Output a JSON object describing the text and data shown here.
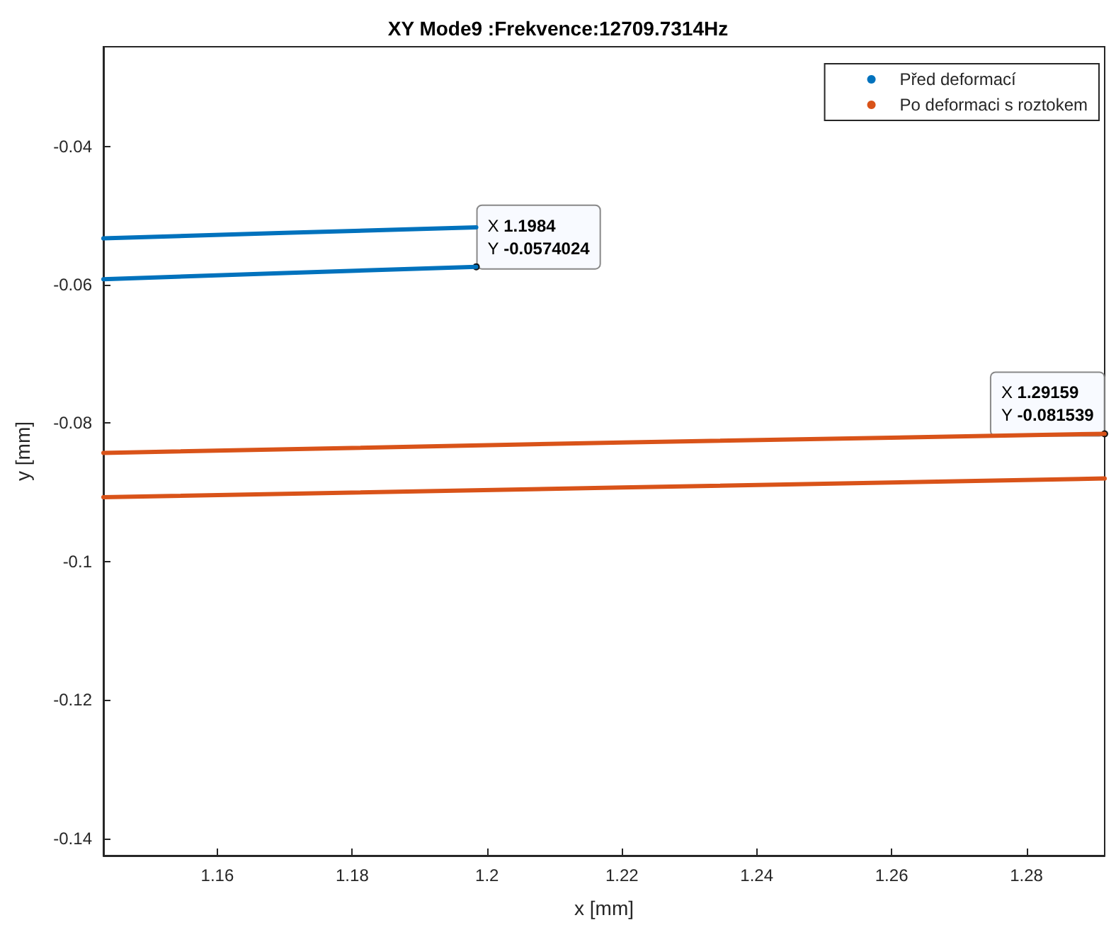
{
  "chart_data": {
    "type": "line",
    "title": "XY Mode9 :Frekvence:12709.7314Hz",
    "xlabel": "x [mm]",
    "ylabel": "y [mm]",
    "xlim": [
      1.1431,
      1.2916
    ],
    "ylim": [
      -0.1425,
      -0.0256
    ],
    "xticks": [
      1.16,
      1.18,
      1.2,
      1.22,
      1.24,
      1.26,
      1.28
    ],
    "yticks": [
      -0.14,
      -0.12,
      -0.1,
      -0.08,
      -0.06,
      -0.04
    ],
    "grid": false,
    "legend": "top right",
    "marker": "none",
    "line_style": "solid",
    "series": [
      {
        "name": "Před deformací",
        "color": "#0072bd",
        "x": [
          1.1431,
          1.17,
          1.1984,
          null,
          1.1431,
          1.17,
          1.1984
        ],
        "values": [
          -0.0533,
          -0.0525,
          -0.0517,
          null,
          -0.0592,
          -0.0583,
          -0.0574024
        ]
      },
      {
        "name": "Po deformaci s roztokem",
        "color": "#d95319",
        "x": [
          1.1431,
          1.22,
          1.29159,
          null,
          1.1431,
          1.22,
          1.2916
        ],
        "values": [
          -0.0843,
          -0.0828,
          -0.081539,
          null,
          -0.0907,
          -0.0893,
          -0.088
        ]
      }
    ],
    "annotations": [
      {
        "text": "X 1.1984\nY -0.0574024",
        "x": 1.1984,
        "y": -0.0574024
      },
      {
        "text": "X 1.29159\nY -0.081539",
        "x": 1.29159,
        "y": -0.081539
      }
    ]
  }
}
